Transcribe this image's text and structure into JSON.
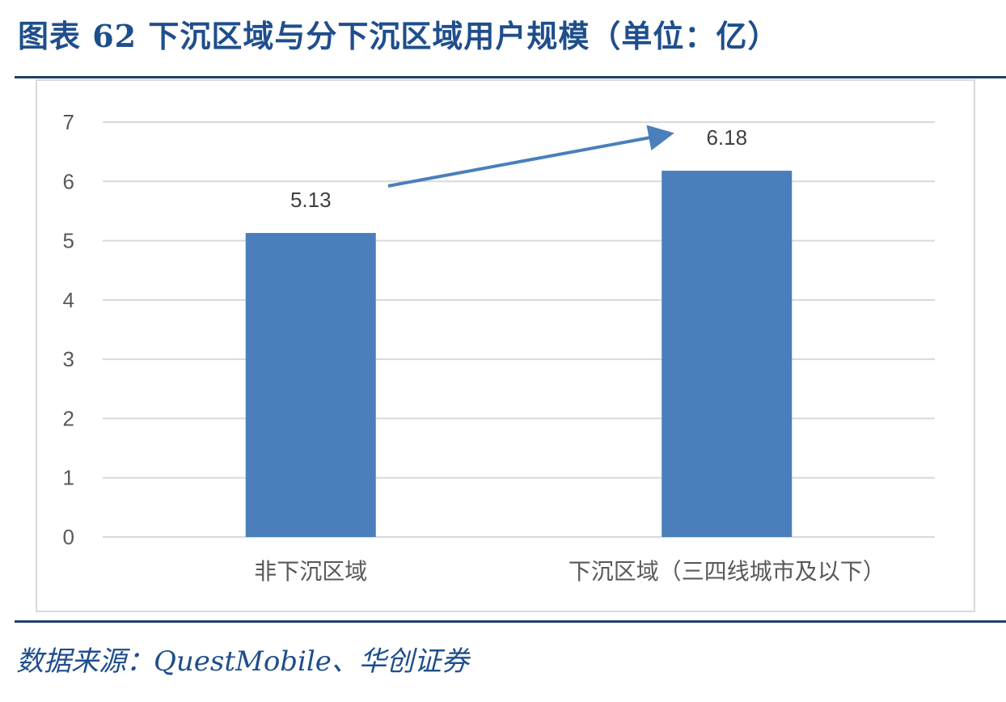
{
  "title": "图表 62   下沉区域与分下沉区域用户规模（单位：亿）",
  "source": "数据来源：QuestMobile、华创证券",
  "colors": {
    "bar": "#4a7fbb",
    "arrow": "#4a7fbb",
    "title": "#1f4e8c",
    "grid": "#d9d9d9"
  },
  "chart_data": {
    "type": "bar",
    "categories": [
      "非下沉区域",
      "下沉区域（三四线城市及以下）"
    ],
    "values": [
      5.13,
      6.18
    ],
    "data_labels": [
      "5.13",
      "6.18"
    ],
    "ylim": [
      0,
      7
    ],
    "yticks": [
      "0",
      "1",
      "2",
      "3",
      "4",
      "5",
      "6",
      "7"
    ],
    "grid": true,
    "annotation": "arrow-up-from-first-to-second-bar"
  }
}
